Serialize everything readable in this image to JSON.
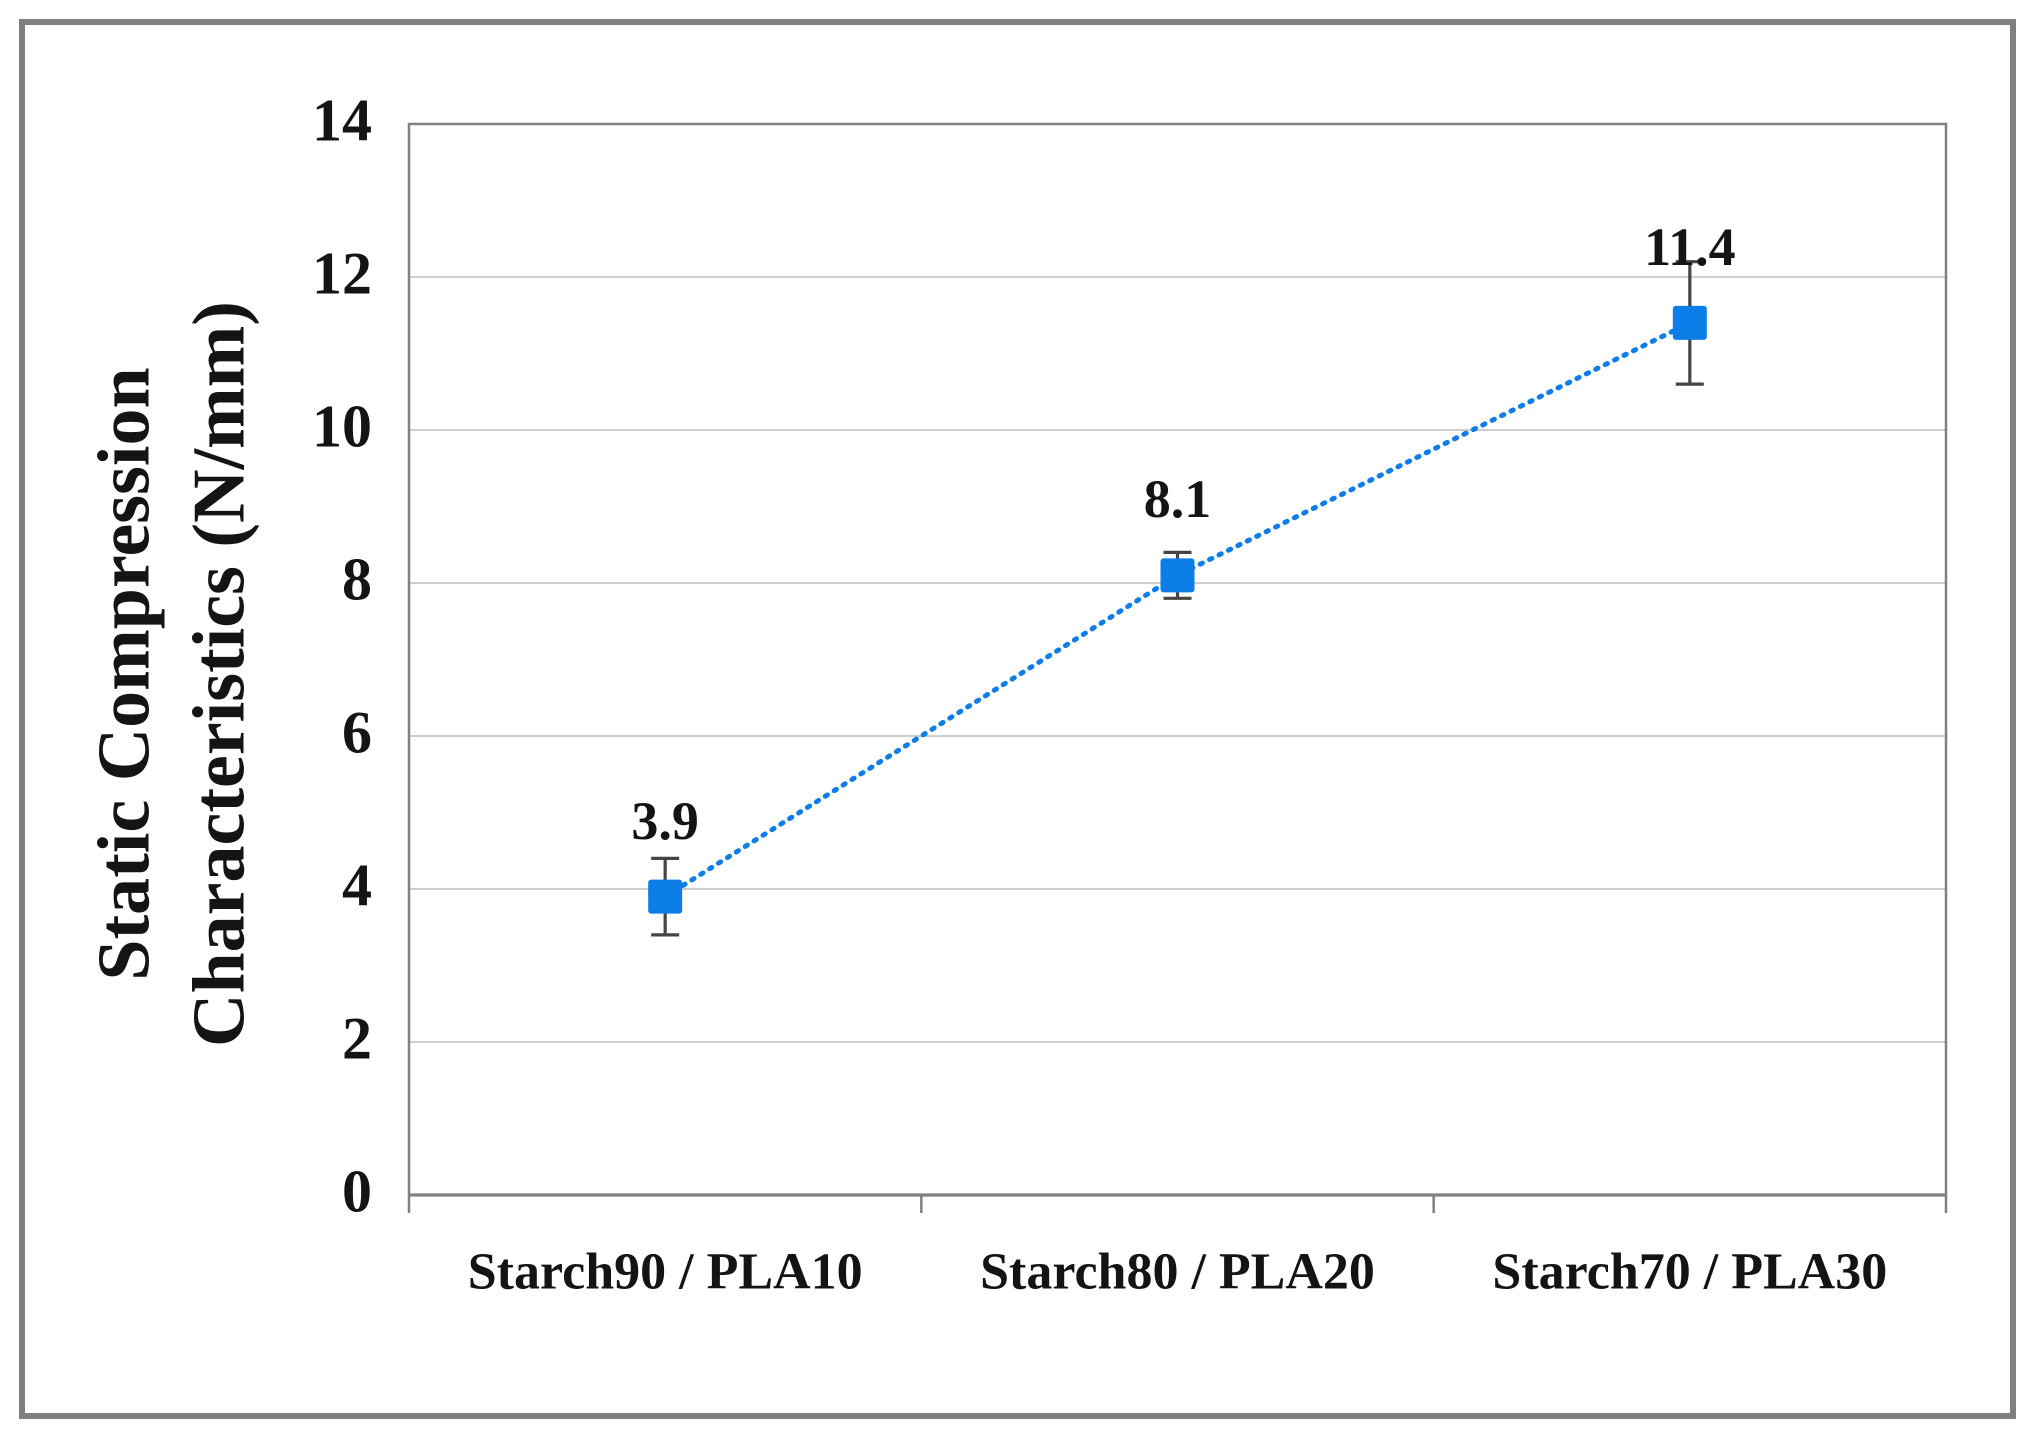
{
  "chart_data": {
    "type": "line",
    "categories": [
      "Starch90 / PLA10",
      "Starch80 / PLA20",
      "Starch70 / PLA30"
    ],
    "series": [
      {
        "name": "Static Compression Characteristics (N/mm)",
        "values": [
          3.9,
          8.1,
          11.4
        ],
        "error_bars_plus_minus": [
          0.5,
          0.3,
          0.8
        ],
        "color": "#0D7EE8",
        "line_style": "dotted",
        "marker": "square"
      }
    ],
    "data_labels": [
      "3.9",
      "8.1",
      "11.4"
    ],
    "ylabel_line1": "Static Compression",
    "ylabel_line2": "Characteristics (N/mm)",
    "ylabel": "Static Compression Characteristics (N/mm)",
    "yticks": [
      "0",
      "2",
      "4",
      "6",
      "8",
      "10",
      "12",
      "14"
    ],
    "ylim": [
      0,
      14
    ],
    "grid": "horizontal",
    "legend_position": "none",
    "colors": {
      "gridline": "#C7C7C7",
      "axis": "#808080",
      "error_bar": "#454545",
      "text": "#141414",
      "frame": "#7F7F7F",
      "background": "#FFFFFF"
    }
  }
}
